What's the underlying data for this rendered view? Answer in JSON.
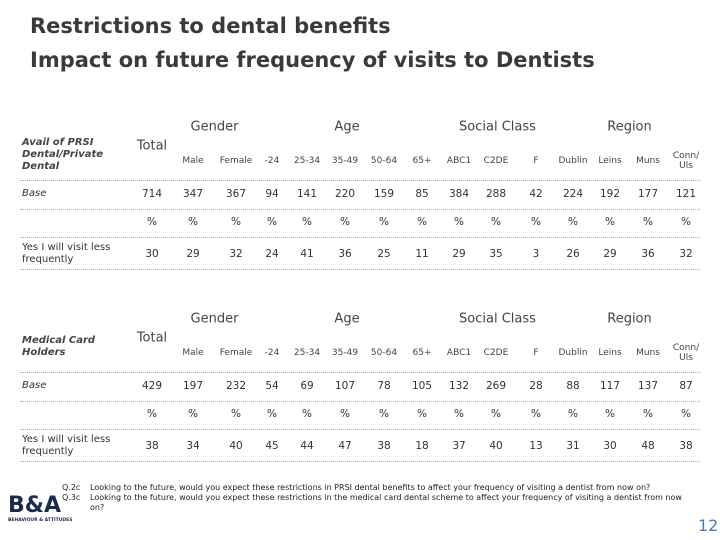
{
  "header": {
    "title": "Restrictions to dental benefits",
    "subtitle": "Impact on future frequency of visits to Dentists"
  },
  "tables": [
    {
      "label": "Avail of PRSI Dental/Private Dental",
      "total": "Total",
      "groups": [
        {
          "name": "Gender",
          "columns": [
            "Male",
            "Female"
          ]
        },
        {
          "name": "Age",
          "columns": [
            "-24",
            "25-34",
            "35-49",
            "50-64",
            "65+"
          ]
        },
        {
          "name": "Social Class",
          "columns": [
            "ABC1",
            "C2DE",
            "F"
          ]
        },
        {
          "name": "Region",
          "columns": [
            "Dublin",
            "Leins",
            "Muns",
            "Conn/ Uls"
          ]
        }
      ],
      "rows": [
        {
          "label": "Base",
          "values": [
            714,
            347,
            367,
            94,
            141,
            220,
            159,
            85,
            384,
            288,
            42,
            224,
            192,
            177,
            121
          ]
        },
        {
          "values": [
            "%",
            "%",
            "%",
            "%",
            "%",
            "%",
            "%",
            "%",
            "%",
            "%",
            "%",
            "%",
            "%",
            "%",
            "%"
          ]
        },
        {
          "label": "Yes I will visit less frequently",
          "values": [
            30,
            29,
            32,
            24,
            41,
            36,
            25,
            11,
            29,
            35,
            3,
            26,
            29,
            36,
            32
          ]
        }
      ]
    },
    {
      "label": "Medical Card Holders",
      "total": "Total",
      "groups": [
        {
          "name": "Gender",
          "columns": [
            "Male",
            "Female"
          ]
        },
        {
          "name": "Age",
          "columns": [
            "-24",
            "25-34",
            "35-49",
            "50-64",
            "65+"
          ]
        },
        {
          "name": "Social Class",
          "columns": [
            "ABC1",
            "C2DE",
            "F"
          ]
        },
        {
          "name": "Region",
          "columns": [
            "Dublin",
            "Leins",
            "Muns",
            "Conn/ Uls"
          ]
        }
      ],
      "rows": [
        {
          "label": "Base",
          "values": [
            429,
            197,
            232,
            54,
            69,
            107,
            78,
            105,
            132,
            269,
            28,
            88,
            117,
            137,
            87
          ]
        },
        {
          "values": [
            "%",
            "%",
            "%",
            "%",
            "%",
            "%",
            "%",
            "%",
            "%",
            "%",
            "%",
            "%",
            "%",
            "%",
            "%"
          ]
        },
        {
          "label": "Yes I will visit less frequently",
          "values": [
            38,
            34,
            40,
            45,
            44,
            47,
            38,
            18,
            37,
            40,
            13,
            31,
            30,
            48,
            38
          ]
        }
      ]
    }
  ],
  "footer": {
    "questions": [
      {
        "code": "Q.2c",
        "text": "Looking to the future, would you expect these restrictions in PRSI dental benefits to affect your frequency of visiting a dentist from now on?"
      },
      {
        "code": "Q.3c",
        "text": "Looking to the future, would you expect these restrictions in the medical card dental scheme to affect your frequency of visiting a dentist from now on?"
      }
    ],
    "logo": "B&A",
    "logo_caption": "BEHAVIOUR & ATTITUDES",
    "page_number": "12"
  }
}
